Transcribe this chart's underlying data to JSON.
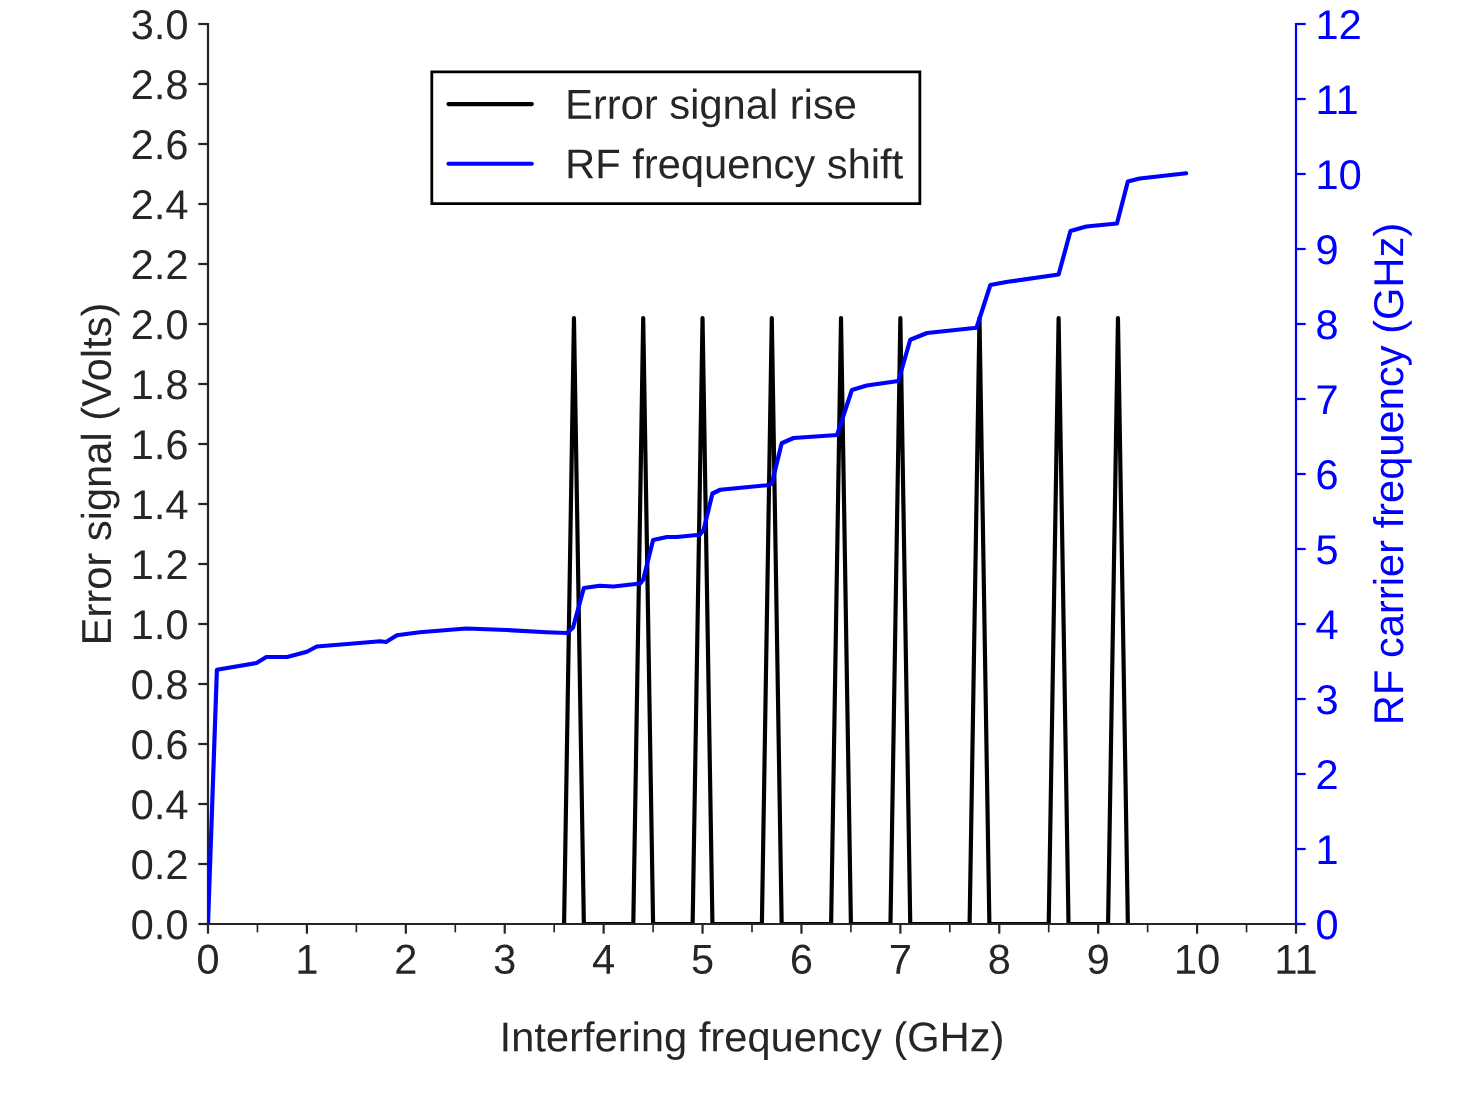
{
  "chart_data": {
    "type": "line",
    "xlabel": "Interfering frequency (GHz)",
    "ylabel": "Error signal (Volts)",
    "y2label": "RF carrier frequency (GHz)",
    "xlim": [
      0,
      11
    ],
    "xticks": [
      0,
      1,
      2,
      3,
      4,
      5,
      6,
      7,
      8,
      9,
      10,
      11
    ],
    "ylim": [
      0.0,
      3.0
    ],
    "yticks": [
      {
        "value": 0,
        "label": "0.0"
      },
      0.2,
      0.4,
      0.6,
      0.8,
      {
        "value": 1,
        "label": "1.0"
      },
      1.2,
      1.4,
      1.6,
      1.8,
      {
        "value": 2,
        "label": "2.0"
      },
      2.2,
      2.4,
      2.6,
      2.8,
      {
        "value": 3,
        "label": "3.0"
      }
    ],
    "y2lim": [
      0,
      12
    ],
    "y2ticks": [
      0,
      1,
      2,
      3,
      4,
      5,
      6,
      7,
      8,
      9,
      10,
      11,
      12
    ],
    "legend": "top",
    "grid": false,
    "series": [
      {
        "name": "Error signal rise",
        "color": "#000000",
        "x": [
          3.6,
          3.7,
          3.8,
          4.3,
          4.4,
          4.5,
          4.9,
          5.0,
          5.1,
          5.6,
          5.7,
          5.8,
          6.3,
          6.4,
          6.5,
          6.9,
          7.0,
          7.1,
          7.7,
          7.8,
          7.9,
          8.5,
          8.6,
          8.7,
          9.1,
          9.2,
          9.3
        ],
        "values": [
          0,
          2.02,
          0,
          0,
          2.02,
          0,
          0,
          2.02,
          0,
          0,
          2.02,
          0,
          0,
          2.02,
          0,
          0,
          2.02,
          0,
          0,
          2.02,
          0,
          0,
          2.02,
          0,
          0,
          2.02,
          0
        ]
      },
      {
        "name": "RF frequency shift",
        "color": "#0000ff",
        "axis": "y2",
        "x": [
          0,
          0.09,
          0.49,
          0.59,
          0.8,
          1.0,
          1.1,
          1.47,
          1.74,
          1.8,
          1.91,
          2.14,
          2.61,
          3.02,
          3.42,
          3.63,
          3.69,
          3.8,
          3.96,
          4.1,
          4.37,
          4.4,
          4.5,
          4.64,
          4.74,
          4.97,
          5.01,
          5.1,
          5.18,
          5.65,
          5.7,
          5.8,
          5.92,
          6.36,
          6.51,
          6.66,
          6.98,
          7.1,
          7.27,
          7.77,
          7.91,
          8.07,
          8.6,
          8.72,
          8.88,
          9.19,
          9.3,
          9.42,
          9.89
        ],
        "values": [
          0,
          3.39,
          3.48,
          3.56,
          3.56,
          3.63,
          3.7,
          3.74,
          3.77,
          3.76,
          3.85,
          3.89,
          3.94,
          3.92,
          3.89,
          3.88,
          3.95,
          4.48,
          4.51,
          4.5,
          4.54,
          4.59,
          5.12,
          5.16,
          5.16,
          5.19,
          5.25,
          5.74,
          5.79,
          5.85,
          5.87,
          6.41,
          6.48,
          6.52,
          7.12,
          7.18,
          7.24,
          7.79,
          7.88,
          7.95,
          8.52,
          8.56,
          8.66,
          9.24,
          9.3,
          9.34,
          9.9,
          9.94,
          10.01
        ]
      }
    ]
  }
}
